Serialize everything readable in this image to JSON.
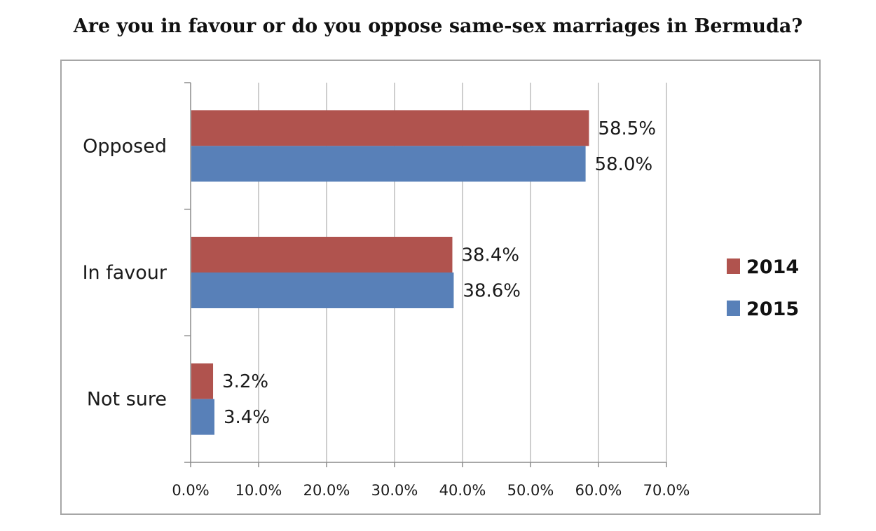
{
  "chart_data": {
    "type": "bar",
    "orientation": "horizontal",
    "title": "Are you in favour or do you oppose same-sex marriages in Bermuda?",
    "categories": [
      "Opposed",
      "In favour",
      "Not sure"
    ],
    "series": [
      {
        "name": "2014",
        "color": "#b0534e",
        "values": [
          58.5,
          38.4,
          3.2
        ],
        "labels": [
          "58.5%",
          "38.4%",
          "3.2%"
        ]
      },
      {
        "name": "2015",
        "color": "#5880b8",
        "values": [
          58.0,
          38.6,
          3.4
        ],
        "labels": [
          "58.0%",
          "38.6%",
          "3.4%"
        ]
      }
    ],
    "xlim": [
      0,
      70
    ],
    "xticks": [
      0,
      10,
      20,
      30,
      40,
      50,
      60,
      70
    ],
    "xtick_labels": [
      "0.0%",
      "10.0%",
      "20.0%",
      "30.0%",
      "40.0%",
      "50.0%",
      "60.0%",
      "70.0%"
    ],
    "grid": "vertical",
    "legend": "right"
  }
}
